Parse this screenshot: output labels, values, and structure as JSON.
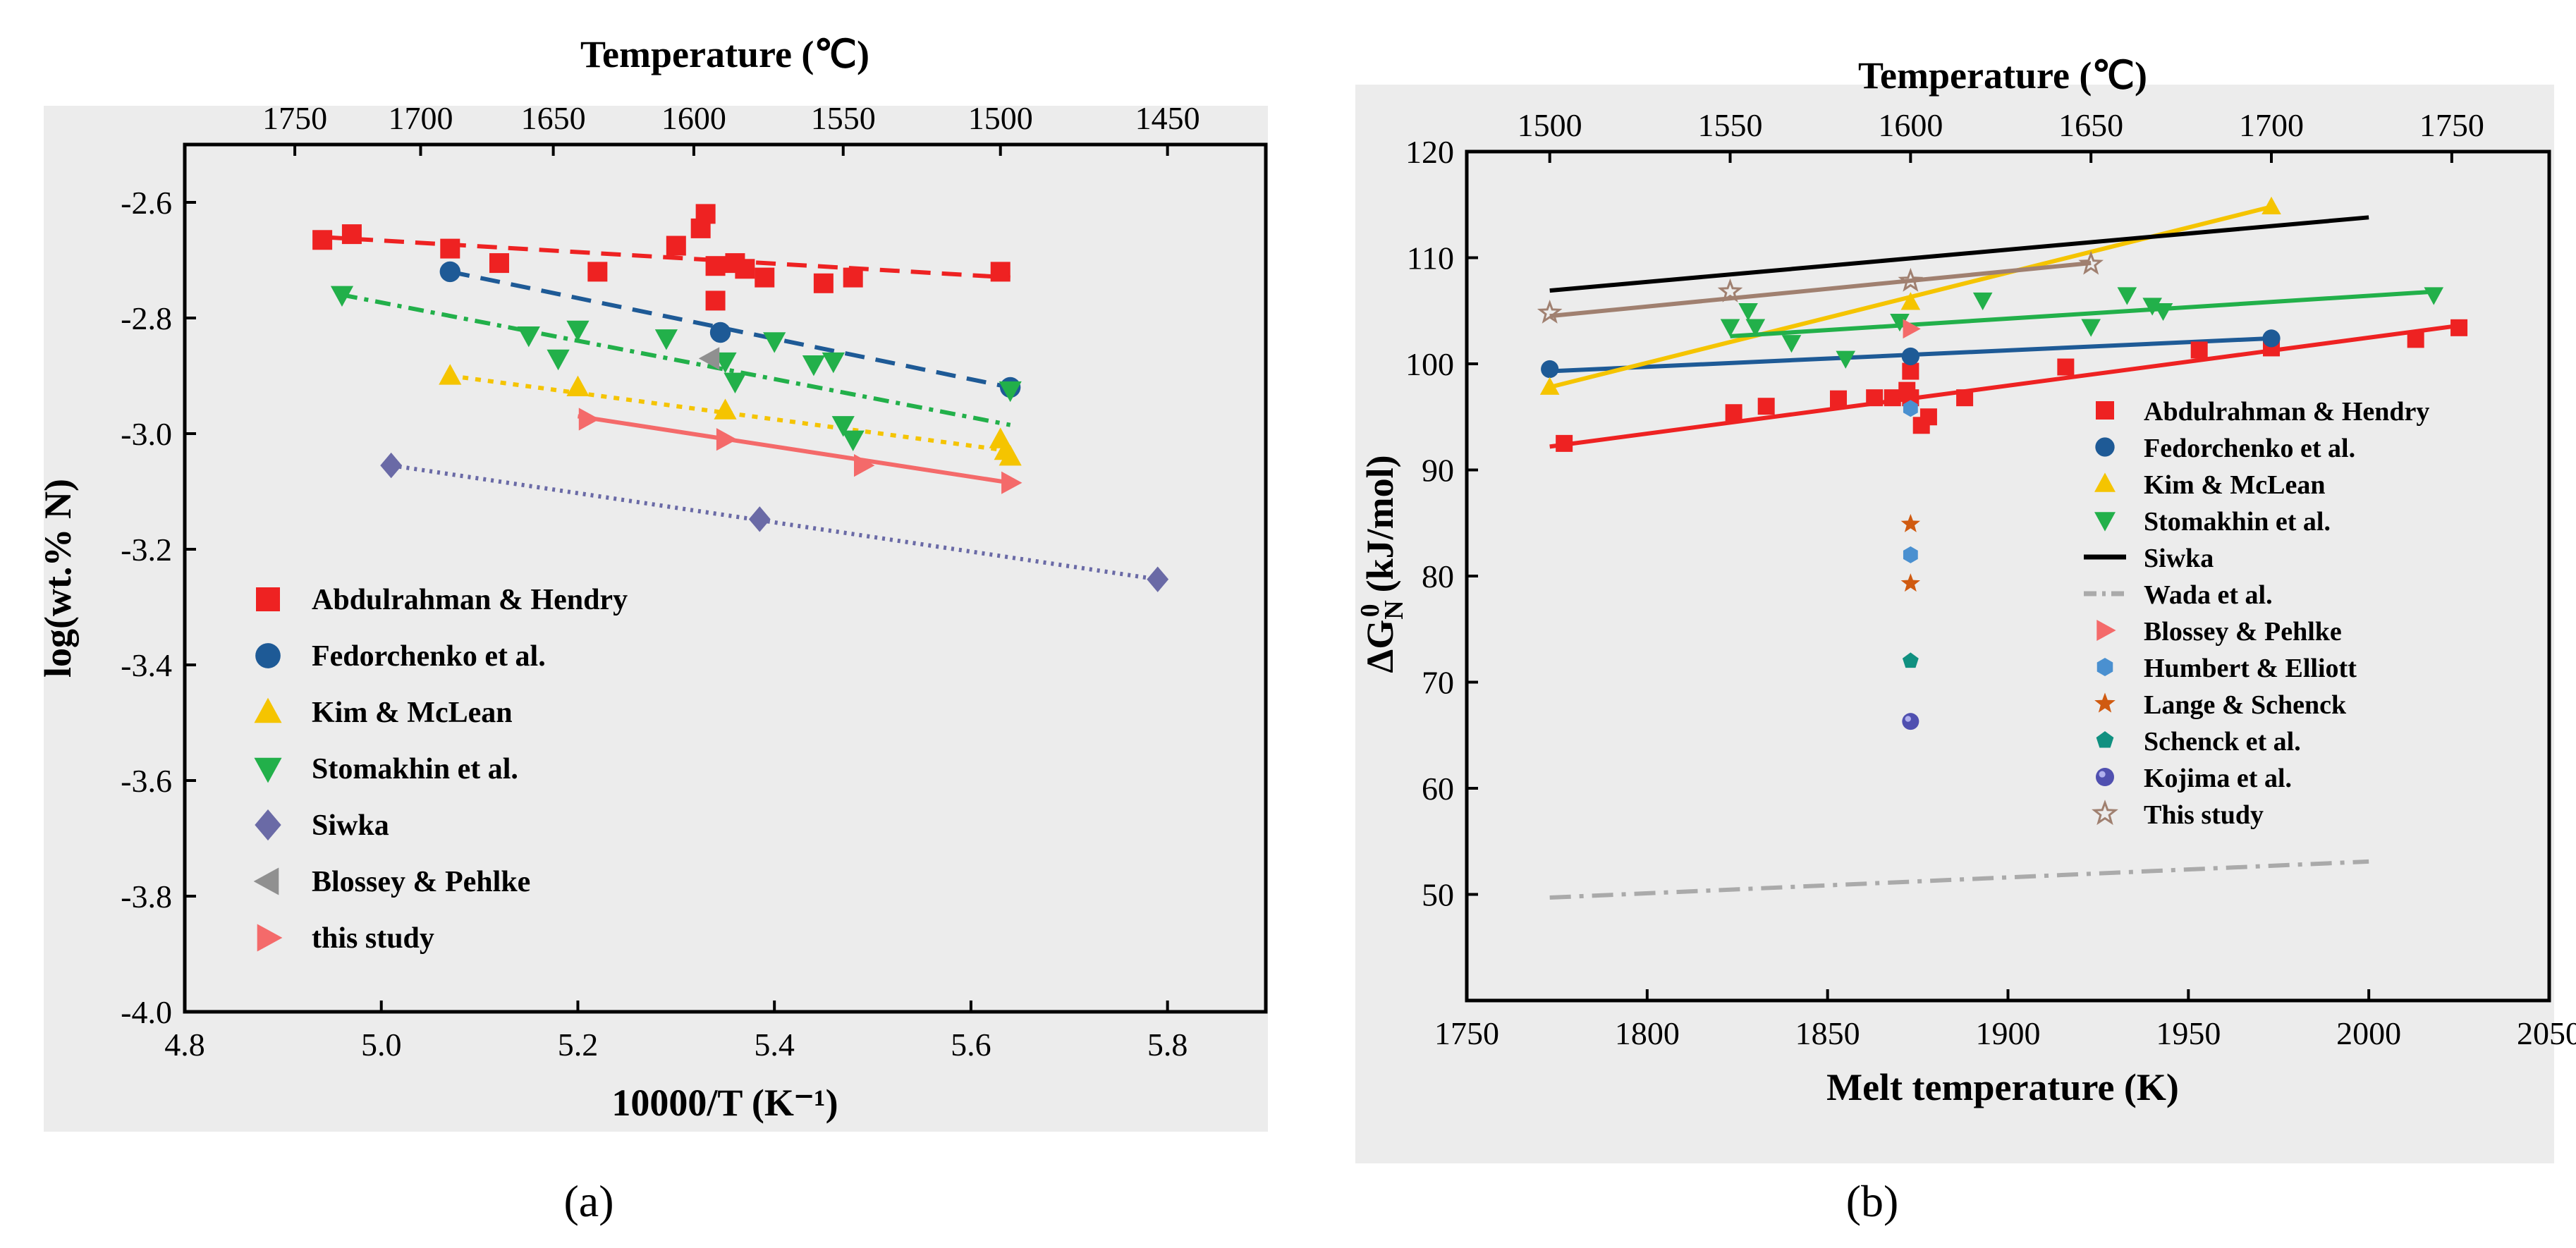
{
  "chart_data": [
    {
      "type": "scatter",
      "caption": "(a)",
      "title_top": "Temperature (℃)",
      "xlabel": "10000/T (K⁻¹)",
      "ylabel": "log(wt.% N)",
      "xlim": [
        4.8,
        5.9
      ],
      "ylim": [
        -4.0,
        -2.5
      ],
      "xticks": [
        {
          "v": 4.8,
          "label": "4.8"
        },
        {
          "v": 5.0,
          "label": "5.0"
        },
        {
          "v": 5.2,
          "label": "5.2"
        },
        {
          "v": 5.4,
          "label": "5.4"
        },
        {
          "v": 5.6,
          "label": "5.6"
        },
        {
          "v": 5.8,
          "label": "5.8"
        }
      ],
      "yticks": [
        {
          "v": -2.6,
          "label": "-2.6"
        },
        {
          "v": -2.8,
          "label": "-2.8"
        },
        {
          "v": -3.0,
          "label": "-3.0"
        },
        {
          "v": -3.2,
          "label": "-3.2"
        },
        {
          "v": -3.4,
          "label": "-3.4"
        },
        {
          "v": -3.6,
          "label": "-3.6"
        },
        {
          "v": -3.8,
          "label": "-3.8"
        },
        {
          "v": -4.0,
          "label": "-4.0"
        }
      ],
      "top_ticks": [
        {
          "v": 4.912,
          "label": "1750"
        },
        {
          "v": 5.04,
          "label": "1700"
        },
        {
          "v": 5.175,
          "label": "1650"
        },
        {
          "v": 5.318,
          "label": "1600"
        },
        {
          "v": 5.47,
          "label": "1550"
        },
        {
          "v": 5.63,
          "label": "1500"
        },
        {
          "v": 5.8,
          "label": "1450"
        }
      ],
      "series": [
        {
          "name": "Abdulrahman & Hendry",
          "marker": "square",
          "color": "#ee2222",
          "line_dash": "28 16",
          "x": [
            4.94,
            4.97,
            5.07,
            5.12,
            5.22,
            5.3,
            5.325,
            5.33,
            5.34,
            5.34,
            5.36,
            5.37,
            5.39,
            5.45,
            5.48,
            5.63
          ],
          "y": [
            -2.665,
            -2.655,
            -2.68,
            -2.705,
            -2.72,
            -2.675,
            -2.645,
            -2.62,
            -2.71,
            -2.77,
            -2.705,
            -2.715,
            -2.73,
            -2.74,
            -2.73,
            -2.72
          ],
          "fit": [
            [
              4.94,
              -2.66
            ],
            [
              5.64,
              -2.73
            ]
          ]
        },
        {
          "name": "Fedorchenko et al.",
          "marker": "circle",
          "color": "#1e5a96",
          "line_dash": "28 16",
          "x": [
            5.07,
            5.345,
            5.64
          ],
          "y": [
            -2.72,
            -2.825,
            -2.92
          ],
          "fit": [
            [
              5.07,
              -2.72
            ],
            [
              5.64,
              -2.92
            ]
          ]
        },
        {
          "name": "Kim & McLean",
          "marker": "triangle-up",
          "color": "#f5c400",
          "line_dash": "8 10",
          "x": [
            5.07,
            5.2,
            5.35,
            5.63,
            5.635,
            5.64
          ],
          "y": [
            -2.9,
            -2.92,
            -2.96,
            -3.01,
            -3.03,
            -3.04
          ],
          "fit": [
            [
              5.07,
              -2.9
            ],
            [
              5.64,
              -3.03
            ]
          ]
        },
        {
          "name": "Stomakhin et al.",
          "marker": "triangle-down",
          "color": "#22b04a",
          "line_dash": "22 10 6 10",
          "x": [
            4.96,
            5.15,
            5.18,
            5.2,
            5.29,
            5.35,
            5.36,
            5.4,
            5.44,
            5.46,
            5.47,
            5.48,
            5.64
          ],
          "y": [
            -2.76,
            -2.83,
            -2.87,
            -2.82,
            -2.835,
            -2.875,
            -2.91,
            -2.84,
            -2.88,
            -2.875,
            -2.985,
            -3.01,
            -2.925
          ],
          "fit": [
            [
              4.96,
              -2.76
            ],
            [
              5.64,
              -2.985
            ]
          ]
        },
        {
          "name": "Siwka",
          "marker": "diamond",
          "color": "#6a6aa6",
          "line_dash": "4 7",
          "x": [
            5.01,
            5.385,
            5.79
          ],
          "y": [
            -3.055,
            -3.148,
            -3.252
          ],
          "fit": [
            [
              5.01,
              -3.055
            ],
            [
              5.79,
              -3.252
            ]
          ]
        },
        {
          "name": "Blossey & Pehlke",
          "marker": "triangle-left",
          "color": "#909090",
          "line_dash": "",
          "x": [
            5.335
          ],
          "y": [
            -2.87
          ],
          "fit": null
        },
        {
          "name": "this study",
          "marker": "triangle-right",
          "color": "#f46a6a",
          "line_dash": "solid",
          "x": [
            5.21,
            5.35,
            5.49,
            5.64
          ],
          "y": [
            -2.975,
            -3.01,
            -3.055,
            -3.085
          ],
          "fit": [
            [
              5.2,
              -2.97
            ],
            [
              5.64,
              -3.085
            ]
          ]
        }
      ]
    },
    {
      "type": "scatter",
      "caption": "(b)",
      "title_top": "Temperature (℃)",
      "xlabel": "Melt temperature (K)",
      "ylabel": "ΔG",
      "ylabel_sub": "N",
      "ylabel_sup": "0",
      "ylabel_unit": "(kJ/mol)",
      "xlim": [
        1750,
        2050
      ],
      "ylim": [
        40,
        120
      ],
      "xticks": [
        {
          "v": 1750,
          "label": "1750"
        },
        {
          "v": 1800,
          "label": "1800"
        },
        {
          "v": 1850,
          "label": "1850"
        },
        {
          "v": 1900,
          "label": "1900"
        },
        {
          "v": 1950,
          "label": "1950"
        },
        {
          "v": 2000,
          "label": "2000"
        },
        {
          "v": 2050,
          "label": "2050"
        }
      ],
      "yticks": [
        {
          "v": 50,
          "label": "50"
        },
        {
          "v": 60,
          "label": "60"
        },
        {
          "v": 70,
          "label": "70"
        },
        {
          "v": 80,
          "label": "80"
        },
        {
          "v": 90,
          "label": "90"
        },
        {
          "v": 100,
          "label": "100"
        },
        {
          "v": 110,
          "label": "110"
        },
        {
          "v": 120,
          "label": "120"
        }
      ],
      "top_ticks": [
        {
          "v": 1773,
          "label": "1500"
        },
        {
          "v": 1823,
          "label": "1550"
        },
        {
          "v": 1873,
          "label": "1600"
        },
        {
          "v": 1923,
          "label": "1650"
        },
        {
          "v": 1973,
          "label": "1700"
        },
        {
          "v": 2023,
          "label": "1750"
        }
      ],
      "series": [
        {
          "name": "Abdulrahman & Hendry",
          "marker": "square",
          "color": "#ee2222",
          "line": "solid",
          "x": [
            1777,
            1824,
            1833,
            1853,
            1863,
            1868,
            1872,
            1873,
            1873,
            1876,
            1878,
            1888,
            1916,
            1953,
            1973,
            2013,
            2025
          ],
          "y": [
            92.5,
            95.4,
            96.0,
            96.7,
            96.8,
            96.8,
            97.5,
            99.3,
            96.8,
            94.2,
            95.0,
            96.8,
            99.7,
            101.3,
            101.5,
            102.3,
            103.4
          ],
          "fit": [
            [
              1773,
              92.2
            ],
            [
              2025,
              103.6
            ]
          ]
        },
        {
          "name": "Fedorchenko et al.",
          "marker": "circle",
          "color": "#1e5a96",
          "line": "solid",
          "x": [
            1773,
            1873,
            1973
          ],
          "y": [
            99.5,
            100.7,
            102.4
          ],
          "fit": [
            [
              1773,
              99.3
            ],
            [
              1973,
              102.4
            ]
          ]
        },
        {
          "name": "Kim & McLean",
          "marker": "triangle-up",
          "color": "#f5c400",
          "line": "solid",
          "x": [
            1773,
            1873,
            1973
          ],
          "y": [
            97.8,
            105.8,
            114.8
          ],
          "fit": [
            [
              1773,
              97.8
            ],
            [
              1973,
              114.8
            ]
          ]
        },
        {
          "name": "Stomakhin et al.",
          "marker": "triangle-down",
          "color": "#22b04a",
          "line": "solid",
          "x": [
            1823,
            1828,
            1830,
            1840,
            1855,
            1870,
            1893,
            1923,
            1933,
            1940,
            1943,
            2018
          ],
          "y": [
            103.5,
            105.0,
            103.5,
            102.0,
            100.5,
            104.0,
            106.0,
            103.5,
            106.5,
            105.5,
            105.0,
            106.5
          ],
          "fit": [
            [
              1823,
              102.6
            ],
            [
              2018,
              106.8
            ]
          ]
        },
        {
          "name": "Siwka",
          "marker": "none",
          "color": "#000000",
          "line": "solid",
          "x": [],
          "y": [],
          "fit": [
            [
              1773,
              106.9
            ],
            [
              2000,
              113.8
            ]
          ]
        },
        {
          "name": "Wada et al.",
          "marker": "none",
          "color": "#aaaaaa",
          "line": "dashdot",
          "x": [],
          "y": [],
          "fit": [
            [
              1773,
              49.7
            ],
            [
              2000,
              53.1
            ]
          ]
        },
        {
          "name": "Blossey & Pehlke",
          "marker": "triangle-right",
          "color": "#f46a6a",
          "line": "none",
          "x": [
            1873
          ],
          "y": [
            103.3
          ],
          "fit": null
        },
        {
          "name": "Humbert & Elliott",
          "marker": "hexagon",
          "color": "#4a90d0",
          "line": "none",
          "x": [
            1873,
            1873
          ],
          "y": [
            95.8,
            82.0
          ],
          "fit": null
        },
        {
          "name": "Lange & Schenck",
          "marker": "star",
          "color": "#d05a10",
          "line": "none",
          "x": [
            1873,
            1873
          ],
          "y": [
            84.9,
            79.3
          ],
          "fit": null
        },
        {
          "name": "Schenck et al.",
          "marker": "pentagon",
          "color": "#109080",
          "line": "none",
          "x": [
            1873
          ],
          "y": [
            72.0
          ],
          "fit": null
        },
        {
          "name": "Kojima et al.",
          "marker": "ball",
          "color": "#5050b0",
          "line": "none",
          "x": [
            1873
          ],
          "y": [
            66.3
          ],
          "fit": null
        },
        {
          "name": "This study",
          "marker": "open-star",
          "color": "#a08070",
          "line": "solid",
          "x": [
            1773,
            1823,
            1873,
            1923
          ],
          "y": [
            104.8,
            106.8,
            107.8,
            109.4
          ],
          "fit": [
            [
              1773,
              104.5
            ],
            [
              1923,
              109.5
            ]
          ]
        }
      ]
    }
  ]
}
